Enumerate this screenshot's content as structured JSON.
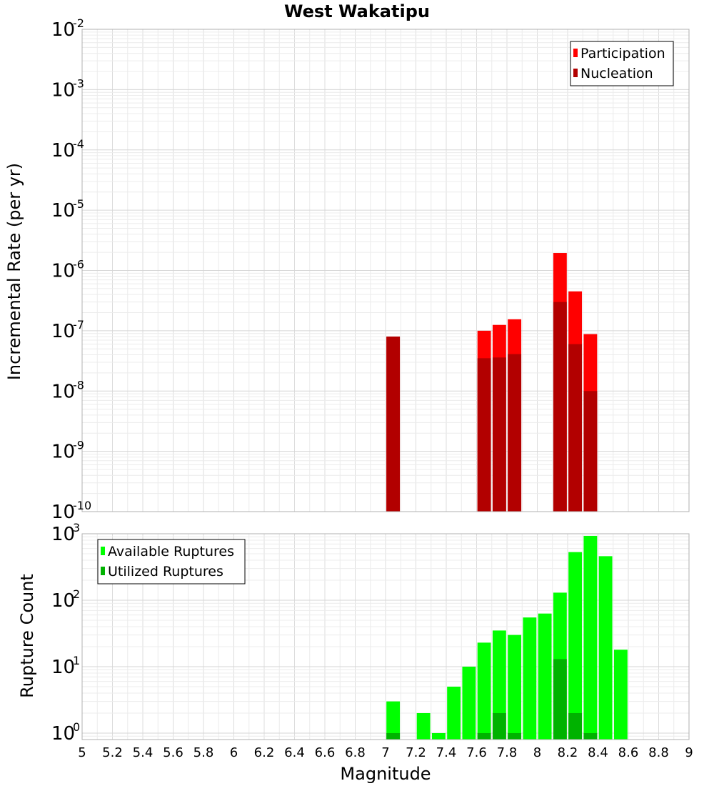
{
  "chart_data": [
    {
      "type": "bar",
      "title": "West Wakatipu",
      "xlabel": "Magnitude",
      "ylabel": "Incremental Rate (per yr)",
      "yscale": "log",
      "xlim": [
        5,
        9
      ],
      "ylim": [
        1e-10,
        0.01
      ],
      "y_tick_exponents": [
        -2,
        -3,
        -4,
        -5,
        -6,
        -7,
        -8,
        -9,
        -10
      ],
      "legend_position": "top-right",
      "bin_width": 0.1,
      "series": [
        {
          "name": "Participation",
          "color": "#ff0000",
          "points": [
            {
              "x": 7.05,
              "y": 8e-08
            },
            {
              "x": 7.65,
              "y": 1e-07
            },
            {
              "x": 7.75,
              "y": 1.25e-07
            },
            {
              "x": 7.85,
              "y": 1.55e-07
            },
            {
              "x": 8.15,
              "y": 1.95e-06
            },
            {
              "x": 8.25,
              "y": 4.5e-07
            },
            {
              "x": 8.35,
              "y": 8.8e-08
            }
          ]
        },
        {
          "name": "Nucleation",
          "color": "#b20000",
          "points": [
            {
              "x": 7.05,
              "y": 8e-08
            },
            {
              "x": 7.65,
              "y": 3.5e-08
            },
            {
              "x": 7.75,
              "y": 3.6e-08
            },
            {
              "x": 7.85,
              "y": 4.1e-08
            },
            {
              "x": 8.15,
              "y": 3e-07
            },
            {
              "x": 8.25,
              "y": 6e-08
            },
            {
              "x": 8.35,
              "y": 1e-08
            }
          ]
        }
      ]
    },
    {
      "type": "bar",
      "xlabel": "Magnitude",
      "ylabel": "Rupture Count",
      "yscale": "log",
      "xlim": [
        5,
        9
      ],
      "ylim": [
        0.8,
        1000
      ],
      "y_tick_exponents": [
        3,
        2,
        1,
        0
      ],
      "x_ticks": [
        "5",
        "5.2",
        "5.4",
        "5.6",
        "5.8",
        "6",
        "6.2",
        "6.4",
        "6.6",
        "6.8",
        "7",
        "7.2",
        "7.4",
        "7.6",
        "7.8",
        "8",
        "8.2",
        "8.4",
        "8.6",
        "8.8",
        "9"
      ],
      "legend_position": "top-left",
      "bin_width": 0.1,
      "series": [
        {
          "name": "Available Ruptures",
          "color": "#00ff00",
          "points": [
            {
              "x": 7.05,
              "y": 3
            },
            {
              "x": 7.25,
              "y": 2
            },
            {
              "x": 7.35,
              "y": 1
            },
            {
              "x": 7.45,
              "y": 5
            },
            {
              "x": 7.55,
              "y": 10
            },
            {
              "x": 7.65,
              "y": 23
            },
            {
              "x": 7.75,
              "y": 35
            },
            {
              "x": 7.85,
              "y": 30
            },
            {
              "x": 7.95,
              "y": 55
            },
            {
              "x": 8.05,
              "y": 63
            },
            {
              "x": 8.15,
              "y": 130
            },
            {
              "x": 8.25,
              "y": 530
            },
            {
              "x": 8.35,
              "y": 930
            },
            {
              "x": 8.45,
              "y": 460
            },
            {
              "x": 8.55,
              "y": 18
            }
          ]
        },
        {
          "name": "Utilized Ruptures",
          "color": "#00b200",
          "points": [
            {
              "x": 7.05,
              "y": 1
            },
            {
              "x": 7.65,
              "y": 1
            },
            {
              "x": 7.75,
              "y": 2
            },
            {
              "x": 7.85,
              "y": 1
            },
            {
              "x": 8.15,
              "y": 13
            },
            {
              "x": 8.25,
              "y": 2
            },
            {
              "x": 8.35,
              "y": 1
            }
          ]
        }
      ]
    }
  ]
}
